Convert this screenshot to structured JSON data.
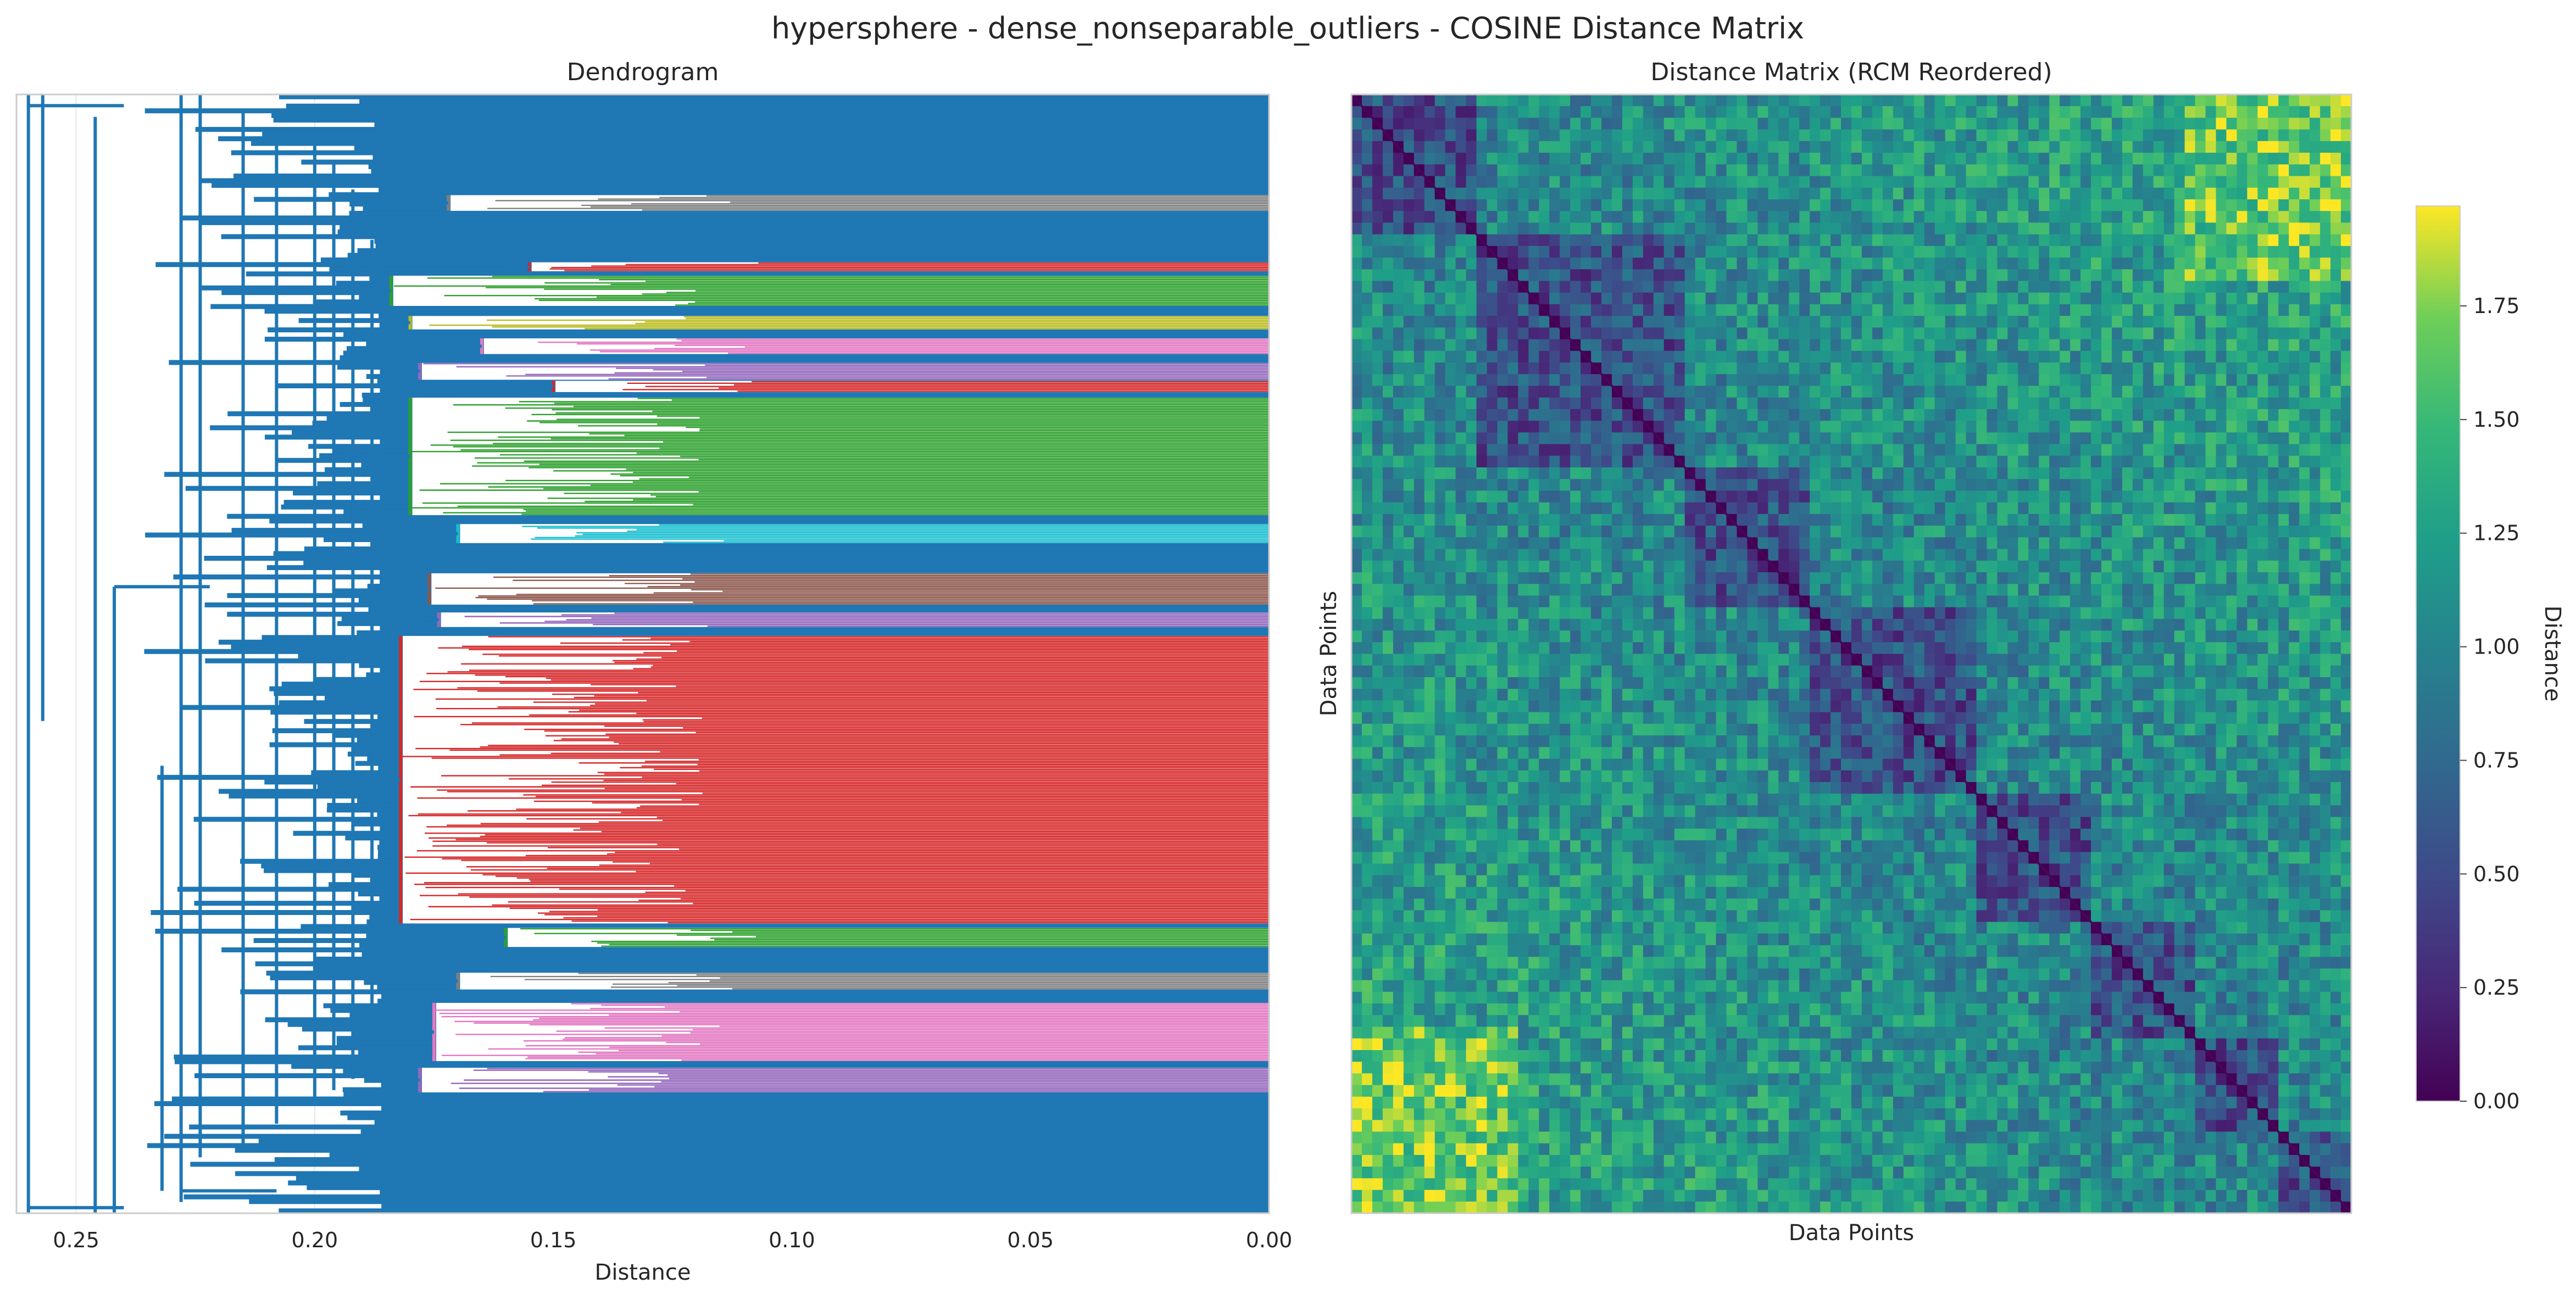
{
  "figure": {
    "suptitle": "hypersphere - dense_nonseparable_outliers - COSINE Distance Matrix"
  },
  "chart_data": [
    {
      "type": "dendrogram",
      "title": "Dendrogram",
      "xlabel": "Distance",
      "ylabel": "",
      "xlim": [
        0.2625,
        0.0
      ],
      "x_inverted": true,
      "xticks": [
        0.25,
        0.2,
        0.15,
        0.1,
        0.05,
        0.0
      ],
      "xtick_labels": [
        "0.25",
        "0.20",
        "0.15",
        "0.10",
        "0.05",
        "0.00"
      ],
      "grid": true,
      "root_height": 0.26,
      "above_threshold_color": "#1f77b4",
      "clusters": [
        {
          "color": "#d62728",
          "start": 0.484,
          "end": 0.741,
          "merge": 0.182
        },
        {
          "color": "#2ca02c",
          "start": 0.271,
          "end": 0.376,
          "merge": 0.18
        },
        {
          "color": "#e377c2",
          "start": 0.812,
          "end": 0.864,
          "merge": 0.175
        },
        {
          "color": "#9467bd",
          "start": 0.87,
          "end": 0.892,
          "merge": 0.178
        },
        {
          "color": "#8c564b",
          "start": 0.428,
          "end": 0.456,
          "merge": 0.176
        },
        {
          "color": "#17becf",
          "start": 0.384,
          "end": 0.401,
          "merge": 0.17
        },
        {
          "color": "#2ca02c",
          "start": 0.162,
          "end": 0.189,
          "merge": 0.184
        },
        {
          "color": "#9467bd",
          "start": 0.24,
          "end": 0.255,
          "merge": 0.178
        },
        {
          "color": "#e377c2",
          "start": 0.218,
          "end": 0.232,
          "merge": 0.165
        },
        {
          "color": "#7f7f7f",
          "start": 0.09,
          "end": 0.104,
          "merge": 0.172
        },
        {
          "color": "#bcbd22",
          "start": 0.198,
          "end": 0.21,
          "merge": 0.18
        },
        {
          "color": "#9467bd",
          "start": 0.463,
          "end": 0.476,
          "merge": 0.174
        },
        {
          "color": "#2ca02c",
          "start": 0.745,
          "end": 0.762,
          "merge": 0.16
        },
        {
          "color": "#7f7f7f",
          "start": 0.785,
          "end": 0.8,
          "merge": 0.17
        },
        {
          "color": "#d62728",
          "start": 0.15,
          "end": 0.158,
          "merge": 0.155
        },
        {
          "color": "#d62728",
          "start": 0.256,
          "end": 0.266,
          "merge": 0.15
        }
      ]
    },
    {
      "type": "heatmap",
      "title": "Distance Matrix (RCM Reordered)",
      "xlabel": "Data Points",
      "ylabel": "Data Points",
      "colormap": "viridis",
      "colorbar_label": "Distance",
      "vmin": 0.0,
      "vmax": 1.97,
      "colorbar_ticks": [
        0.0,
        0.25,
        0.5,
        0.75,
        1.0,
        1.25,
        1.5,
        1.75
      ],
      "colorbar_tick_labels": [
        "0.00",
        "0.25",
        "0.50",
        "0.75",
        "1.00",
        "1.25",
        "1.50",
        "1.75"
      ],
      "diagonal_value": 0.0,
      "blocks": [
        [
          0.0,
          0.12
        ],
        [
          0.12,
          0.33
        ],
        [
          0.33,
          0.46
        ],
        [
          0.46,
          0.63
        ],
        [
          0.63,
          0.74
        ],
        [
          0.74,
          0.84
        ],
        [
          0.84,
          0.93
        ],
        [
          0.93,
          1.0
        ]
      ]
    }
  ]
}
